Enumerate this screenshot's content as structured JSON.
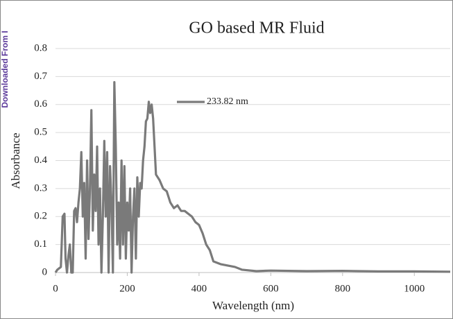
{
  "side_note": "Downloaded From I",
  "chart_data": {
    "type": "line",
    "title": "GO based MR Fluid",
    "x_label": "Wavelength (nm)",
    "y_label": "Absorbance",
    "xlim": [
      0,
      1100
    ],
    "ylim": [
      0,
      0.8
    ],
    "xticks": [
      0,
      200,
      400,
      600,
      800,
      1000
    ],
    "yticks": [
      0,
      0.1,
      0.2,
      0.3,
      0.4,
      0.5,
      0.6,
      0.7,
      0.8
    ],
    "grid": true,
    "series": [
      {
        "name": "233.82 nm",
        "color": "#7a7a7a",
        "x": [
          0,
          5,
          15,
          20,
          25,
          28,
          32,
          36,
          40,
          44,
          48,
          52,
          56,
          60,
          64,
          68,
          72,
          76,
          80,
          84,
          88,
          92,
          96,
          100,
          104,
          108,
          112,
          116,
          120,
          124,
          128,
          132,
          136,
          140,
          144,
          148,
          152,
          156,
          160,
          164,
          168,
          172,
          176,
          180,
          184,
          188,
          192,
          196,
          200,
          204,
          208,
          212,
          216,
          220,
          224,
          228,
          232,
          236,
          240,
          244,
          248,
          252,
          256,
          260,
          264,
          268,
          272,
          276,
          280,
          290,
          300,
          310,
          320,
          330,
          340,
          350,
          360,
          370,
          380,
          390,
          400,
          410,
          420,
          430,
          440,
          450,
          460,
          480,
          500,
          520,
          560,
          600,
          700,
          800,
          900,
          1000,
          1100
        ],
        "values": [
          0,
          0.01,
          0.02,
          0.2,
          0.21,
          0.05,
          0,
          0.06,
          0.1,
          0,
          0,
          0.22,
          0.23,
          0.18,
          0.25,
          0.3,
          0.43,
          0.2,
          0.32,
          0.05,
          0.4,
          0.12,
          0.3,
          0.58,
          0.15,
          0.35,
          0.22,
          0.45,
          0.1,
          0.3,
          0,
          0.2,
          0.47,
          0.2,
          0.43,
          0,
          0.38,
          0.25,
          0,
          0.68,
          0.45,
          0.1,
          0.25,
          0.05,
          0.4,
          0.1,
          0.38,
          0.05,
          0.25,
          0.15,
          0.3,
          0,
          0.2,
          0.3,
          0.05,
          0.34,
          0.2,
          0.32,
          0.3,
          0.4,
          0.45,
          0.54,
          0.55,
          0.61,
          0.57,
          0.6,
          0.55,
          0.45,
          0.35,
          0.33,
          0.3,
          0.29,
          0.25,
          0.23,
          0.24,
          0.22,
          0.22,
          0.21,
          0.2,
          0.18,
          0.17,
          0.14,
          0.1,
          0.08,
          0.04,
          0.035,
          0.03,
          0.025,
          0.02,
          0.01,
          0.005,
          0.007,
          0.005,
          0.006,
          0.004,
          0.004,
          0.003
        ]
      }
    ]
  }
}
